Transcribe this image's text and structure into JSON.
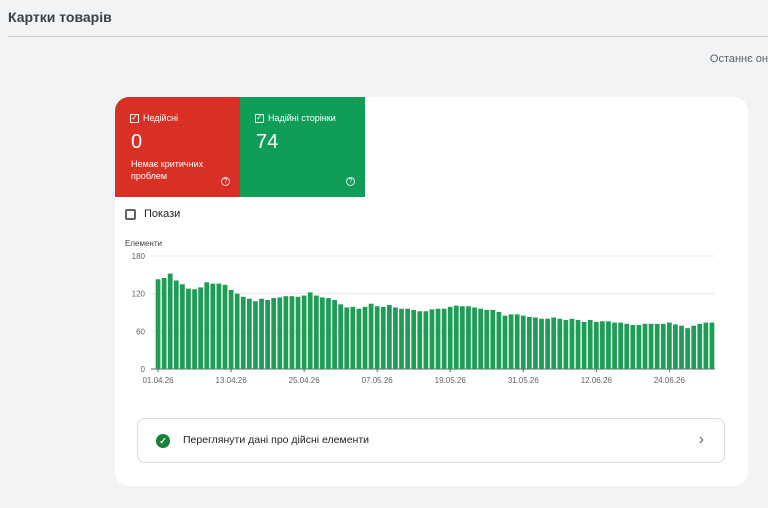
{
  "header": {
    "title": "Картки товарів",
    "last_updated": "Останнє он"
  },
  "tiles": {
    "invalid": {
      "label": "Недійсні",
      "value": "0",
      "note": "Немає критичних проблем"
    },
    "valid": {
      "label": "Надійні сторінки",
      "value": "74"
    }
  },
  "toggle": {
    "impressions_label": "Покази"
  },
  "colors": {
    "invalid": "#d93025",
    "valid": "#0f9d58",
    "bar": "#1e9d57"
  },
  "chart_data": {
    "type": "bar",
    "ylabel": "Елементи",
    "ylim": [
      0,
      180
    ],
    "yticks": [
      "0",
      "60",
      "120",
      "180"
    ],
    "grid": true,
    "xtick_labels": [
      "01.04.26",
      "13.04.26",
      "25.04.26",
      "07.05.26",
      "19.05.26",
      "31.05.26",
      "12.06.26",
      "24.06.26"
    ],
    "xtick_indices": [
      0,
      12,
      24,
      36,
      48,
      60,
      72,
      84
    ],
    "values": [
      143,
      145,
      152,
      141,
      135,
      128,
      127,
      130,
      138,
      136,
      136,
      134,
      126,
      120,
      115,
      112,
      108,
      112,
      110,
      113,
      114,
      116,
      116,
      115,
      117,
      122,
      117,
      114,
      113,
      110,
      103,
      98,
      99,
      96,
      99,
      104,
      100,
      99,
      102,
      98,
      96,
      96,
      94,
      92,
      92,
      95,
      96,
      96,
      99,
      101,
      100,
      100,
      98,
      96,
      94,
      94,
      91,
      85,
      87,
      87,
      85,
      83,
      82,
      80,
      80,
      82,
      80,
      78,
      80,
      78,
      75,
      78,
      75,
      76,
      76,
      74,
      74,
      72,
      70,
      70,
      72,
      72,
      72,
      72,
      74,
      71,
      69,
      65,
      69,
      72,
      74,
      74
    ]
  },
  "footer": {
    "view_valid_label": "Переглянути дані про дійсні елементи"
  }
}
